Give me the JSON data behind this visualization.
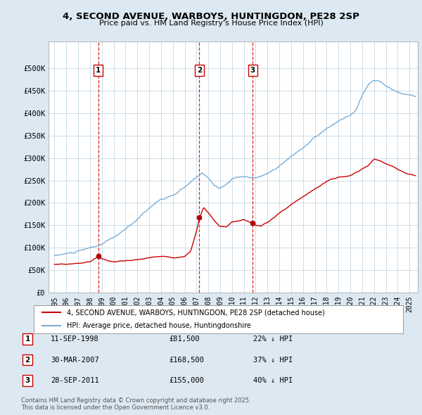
{
  "title": "4, SECOND AVENUE, WARBOYS, HUNTINGDON, PE28 2SP",
  "subtitle": "Price paid vs. HM Land Registry's House Price Index (HPI)",
  "legend_label_red": "4, SECOND AVENUE, WARBOYS, HUNTINGDON, PE28 2SP (detached house)",
  "legend_label_blue": "HPI: Average price, detached house, Huntingdonshire",
  "footer_line1": "Contains HM Land Registry data © Crown copyright and database right 2025.",
  "footer_line2": "This data is licensed under the Open Government Licence v3.0.",
  "sale_points": [
    {
      "label": "1",
      "date_num": 1998.7,
      "price": 81500,
      "date_str": "11-SEP-1998",
      "pct": "22%",
      "dir": "↓"
    },
    {
      "label": "2",
      "date_num": 2007.24,
      "price": 168500,
      "date_str": "30-MAR-2007",
      "pct": "37%",
      "dir": "↓"
    },
    {
      "label": "3",
      "date_num": 2011.74,
      "price": 155000,
      "date_str": "28-SEP-2011",
      "pct": "40%",
      "dir": "↓"
    }
  ],
  "ylim": [
    0,
    560000
  ],
  "yticks": [
    0,
    50000,
    100000,
    150000,
    200000,
    250000,
    300000,
    350000,
    400000,
    450000,
    500000
  ],
  "xlim_start": 1994.5,
  "xlim_end": 2025.7,
  "xtick_years": [
    1995,
    1996,
    1997,
    1998,
    1999,
    2000,
    2001,
    2002,
    2003,
    2004,
    2005,
    2006,
    2007,
    2008,
    2009,
    2010,
    2011,
    2012,
    2013,
    2014,
    2015,
    2016,
    2017,
    2018,
    2019,
    2020,
    2021,
    2022,
    2023,
    2024,
    2025
  ],
  "red_color": "#cc0000",
  "blue_color": "#7aadd4",
  "dashed_color": "#cc0000",
  "background_color": "#dde9f2",
  "plot_bg_color": "#dde9f2",
  "grid_color": "#b8cfe0",
  "axes_bg": "#ffffff"
}
